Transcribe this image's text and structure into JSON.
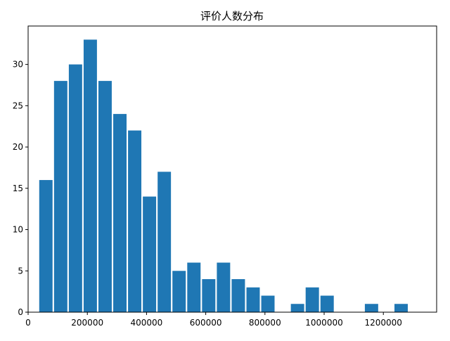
{
  "chart_data": {
    "type": "bar",
    "title": "评价人数分布",
    "xlabel": "",
    "ylabel": "",
    "xlim": [
      0,
      1380000
    ],
    "ylim": [
      0,
      34.65
    ],
    "x_ticks": [
      0,
      200000,
      400000,
      600000,
      800000,
      1000000,
      1200000
    ],
    "x_tick_labels": [
      "0",
      "200000",
      "400000",
      "600000",
      "800000",
      "1000000",
      "1200000"
    ],
    "y_ticks": [
      0,
      5,
      10,
      15,
      20,
      25,
      30
    ],
    "y_tick_labels": [
      "0",
      "5",
      "10",
      "15",
      "20",
      "25",
      "30"
    ],
    "grid": false,
    "legend": "none",
    "bar_color": "#1f77b4",
    "bin_width": 50000,
    "bar_width_fraction": 0.9,
    "bins": [
      {
        "x": 60000,
        "value": 16
      },
      {
        "x": 110000,
        "value": 28
      },
      {
        "x": 160000,
        "value": 30
      },
      {
        "x": 210000,
        "value": 33
      },
      {
        "x": 260000,
        "value": 28
      },
      {
        "x": 310000,
        "value": 24
      },
      {
        "x": 360000,
        "value": 22
      },
      {
        "x": 410000,
        "value": 14
      },
      {
        "x": 460000,
        "value": 17
      },
      {
        "x": 510000,
        "value": 5
      },
      {
        "x": 560000,
        "value": 6
      },
      {
        "x": 610000,
        "value": 4
      },
      {
        "x": 660000,
        "value": 6
      },
      {
        "x": 710000,
        "value": 4
      },
      {
        "x": 760000,
        "value": 3
      },
      {
        "x": 810000,
        "value": 2
      },
      {
        "x": 860000,
        "value": 0
      },
      {
        "x": 910000,
        "value": 1
      },
      {
        "x": 960000,
        "value": 3
      },
      {
        "x": 1010000,
        "value": 2
      },
      {
        "x": 1060000,
        "value": 0
      },
      {
        "x": 1110000,
        "value": 0
      },
      {
        "x": 1160000,
        "value": 1
      },
      {
        "x": 1210000,
        "value": 0
      },
      {
        "x": 1260000,
        "value": 1
      }
    ]
  }
}
